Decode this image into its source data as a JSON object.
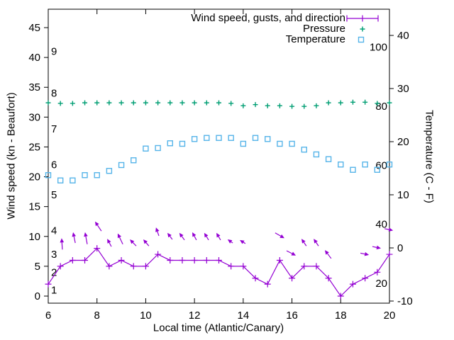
{
  "colors": {
    "wind": "#9400D3",
    "pressure": "#009E73",
    "temperature": "#56B4E9",
    "axis": "#000000",
    "background": "#ffffff"
  },
  "chart_data": {
    "type": "line",
    "title": "",
    "xlabel": "Local time (Atlantic/Canary)",
    "ylabel_left": "Wind speed (kn - Beaufort)",
    "ylabel_right": "Temperature (C - F)",
    "legend_position": "top-right-inside",
    "x_ticks": [
      6,
      8,
      10,
      12,
      14,
      16,
      18,
      20
    ],
    "wind_axis_ticks_kn": [
      0,
      5,
      10,
      15,
      20,
      25,
      30,
      35,
      40,
      45
    ],
    "temp_axis_ticks_c": [
      -10,
      0,
      10,
      20,
      30,
      40
    ],
    "beaufort_inner_labels": [
      {
        "label": "1",
        "kn": 1
      },
      {
        "label": "2",
        "kn": 4
      },
      {
        "label": "3",
        "kn": 7
      },
      {
        "label": "4",
        "kn": 11
      },
      {
        "label": "5",
        "kn": 17
      },
      {
        "label": "6",
        "kn": 22
      },
      {
        "label": "7",
        "kn": 28
      },
      {
        "label": "8",
        "kn": 34
      },
      {
        "label": "9",
        "kn": 41
      }
    ],
    "fahrenheit_inner_labels": [
      "20",
      "40",
      "60",
      "80",
      "100"
    ],
    "x": [
      6,
      6.5,
      7,
      7.5,
      8,
      8.5,
      9,
      9.5,
      10,
      10.5,
      11,
      11.5,
      12,
      12.5,
      13,
      13.5,
      14,
      14.5,
      15,
      15.5,
      16,
      16.5,
      17,
      17.5,
      18,
      18.5,
      19,
      19.5,
      20
    ],
    "series": [
      {
        "name": "Wind speed, gusts, and direction",
        "axis": "wind-kn",
        "marker": "plus-errorbar",
        "values": [
          2,
          5,
          6,
          6,
          8,
          5,
          6,
          5,
          5,
          7,
          6,
          6,
          6,
          6,
          6,
          5,
          5,
          3,
          2,
          6,
          3,
          5,
          5,
          3,
          0,
          2,
          3,
          4,
          7
        ]
      },
      {
        "name": "Pressure",
        "axis": "unlabeled (plotted level read in wind-kn screen units)",
        "marker": "plus",
        "values": [
          32.4,
          32.3,
          32.3,
          32.4,
          32.4,
          32.4,
          32.4,
          32.4,
          32.4,
          32.4,
          32.4,
          32.4,
          32.4,
          32.4,
          32.4,
          32.3,
          31.9,
          32.1,
          31.9,
          31.9,
          31.8,
          31.8,
          31.9,
          32.4,
          32.4,
          32.5,
          32.5,
          32.3,
          32.4
        ]
      },
      {
        "name": "Temperature",
        "axis": "temp-c",
        "marker": "open-square",
        "values": [
          13.7,
          12.7,
          12.7,
          13.7,
          13.7,
          14.5,
          15.6,
          16.5,
          18.7,
          18.8,
          19.7,
          19.6,
          20.5,
          20.7,
          20.7,
          20.7,
          19.6,
          20.7,
          20.5,
          19.6,
          19.6,
          18.5,
          17.6,
          16.7,
          15.7,
          14.7,
          15.7,
          14.7,
          15.7
        ]
      }
    ],
    "wind_direction_vectors_tail_to_head_t_kn": [
      [
        6.58,
        7.8,
        6.55,
        9.7
      ],
      [
        7.11,
        8.9,
        7.02,
        10.7
      ],
      [
        7.6,
        8.7,
        7.51,
        10.7
      ],
      [
        8.18,
        10.9,
        7.92,
        12.5
      ],
      [
        8.59,
        8.3,
        8.42,
        9.6
      ],
      [
        9.06,
        8.7,
        8.85,
        10.5
      ],
      [
        9.61,
        8.4,
        9.35,
        9.5
      ],
      [
        10.13,
        8.4,
        9.9,
        9.5
      ],
      [
        10.54,
        10.1,
        10.42,
        11.5
      ],
      [
        11.09,
        9.5,
        10.89,
        10.6
      ],
      [
        11.59,
        9.4,
        11.38,
        10.6
      ],
      [
        12.08,
        9.4,
        11.91,
        10.7
      ],
      [
        12.58,
        9.4,
        12.4,
        10.6
      ],
      [
        13.07,
        9.4,
        12.9,
        10.6
      ],
      [
        13.57,
        8.9,
        13.36,
        9.5
      ],
      [
        14.09,
        8.8,
        13.86,
        9.4
      ],
      [
        15.31,
        10.6,
        15.69,
        9.7
      ],
      [
        15.78,
        7.6,
        16.16,
        6.8
      ],
      [
        16.59,
        8.4,
        16.39,
        9.6
      ],
      [
        17.09,
        8.4,
        16.89,
        9.6
      ],
      [
        17.61,
        6.3,
        17.35,
        7.7
      ],
      [
        18.81,
        7.2,
        19.16,
        6.9
      ],
      [
        19.3,
        8.3,
        19.65,
        8.0
      ],
      [
        19.8,
        11.3,
        20.15,
        11.0
      ]
    ],
    "x_range": [
      6,
      20
    ],
    "wind_axis_range_kn": [
      -1.19,
      48.09
    ],
    "temp_axis_range_c": [
      -10.4,
      44.93
    ],
    "grid": false
  }
}
